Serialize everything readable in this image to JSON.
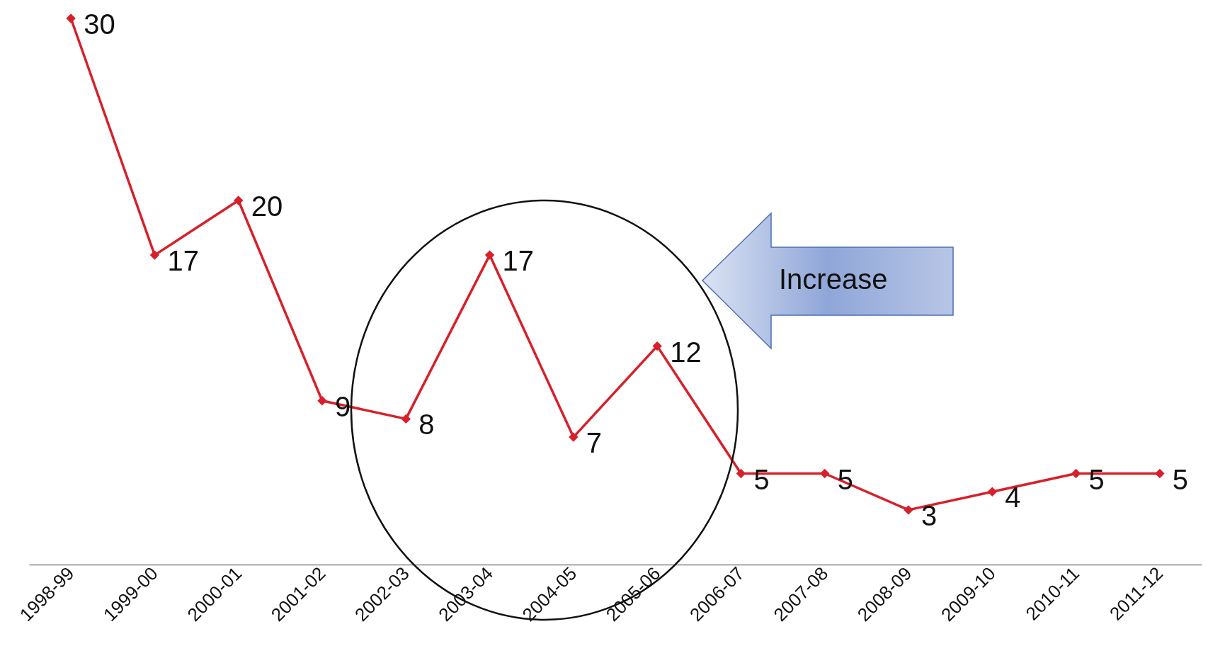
{
  "chart_data": {
    "type": "line",
    "categories": [
      "1998-99",
      "1999-00",
      "2000-01",
      "2001-02",
      "2002-03",
      "2003-04",
      "2004-05",
      "2005-06",
      "2006-07",
      "2007-08",
      "2008-09",
      "2009-10",
      "2010-11",
      "2011-12"
    ],
    "series": [
      {
        "color": "#d7202a",
        "values": [
          30,
          17,
          20,
          9,
          8,
          17,
          7,
          12,
          5,
          5,
          3,
          4,
          5,
          5
        ]
      }
    ],
    "data_labels": true,
    "marker": "diamond",
    "line_style": "solid",
    "grid": false,
    "tick_labels": "x",
    "annotations": [
      "Increase"
    ]
  }
}
